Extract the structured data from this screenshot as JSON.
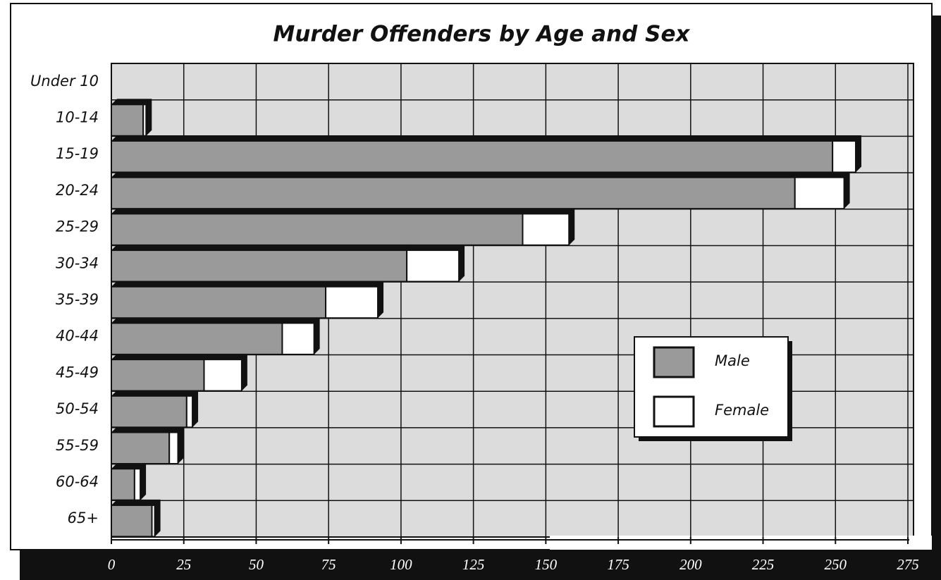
{
  "chart_data": {
    "type": "bar",
    "orientation": "horizontal",
    "stacked": true,
    "title": "Murder Offenders by Age and Sex",
    "categories": [
      "Under 10",
      "10-14",
      "15-19",
      "20-24",
      "25-29",
      "30-34",
      "35-39",
      "40-44",
      "45-49",
      "50-54",
      "55-59",
      "60-64",
      "65+"
    ],
    "series": [
      {
        "name": "Male",
        "color": "#9a9a9a",
        "values": [
          0,
          11,
          249,
          236,
          142,
          102,
          74,
          59,
          32,
          26,
          20,
          8,
          14
        ]
      },
      {
        "name": "Female",
        "color": "#ffffff",
        "values": [
          0,
          1,
          8,
          17,
          16,
          18,
          18,
          11,
          13,
          2,
          3,
          2,
          1
        ]
      }
    ],
    "xlim": [
      0,
      275
    ],
    "xticks": [
      0,
      25,
      50,
      75,
      100,
      125,
      150,
      175,
      200,
      225,
      250,
      275
    ],
    "grid": true
  }
}
